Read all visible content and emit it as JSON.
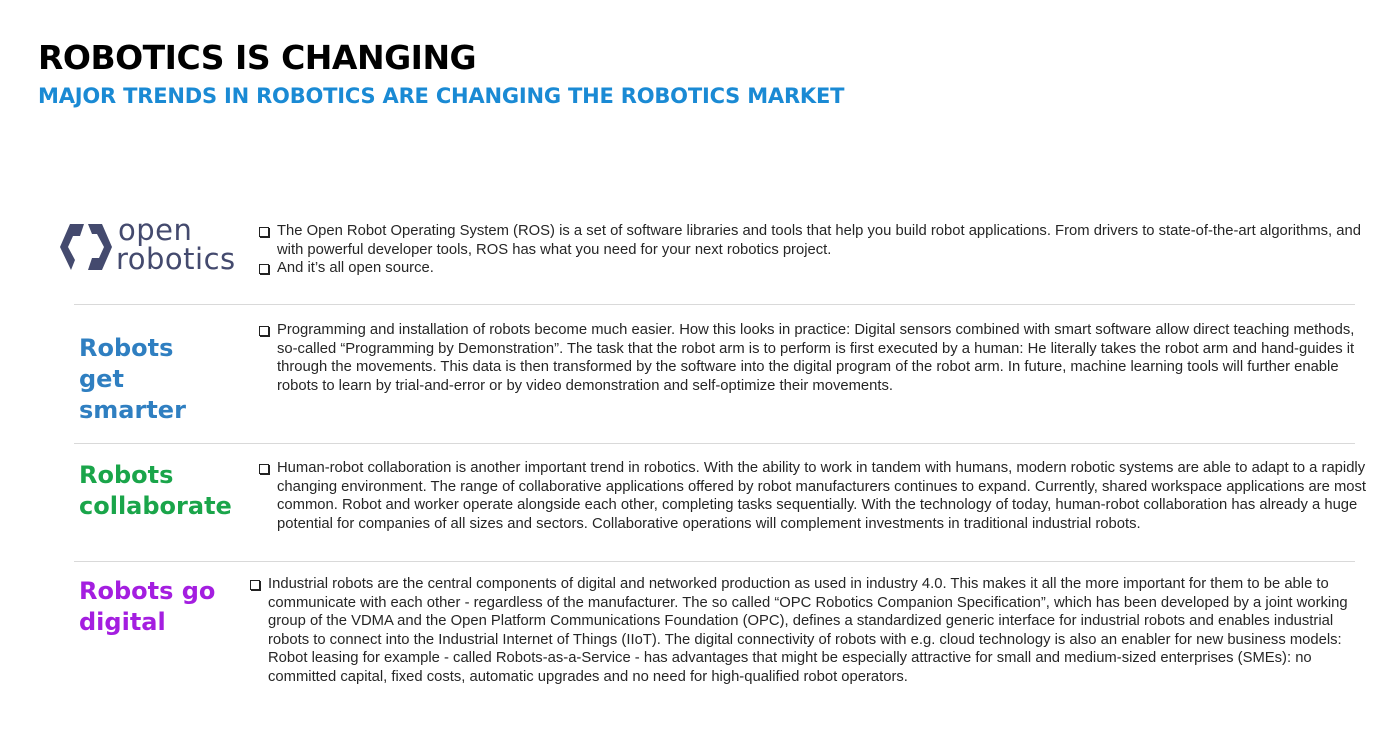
{
  "header": {
    "title": "ROBOTICS IS CHANGING",
    "subtitle": "MAJOR TRENDS IN ROBOTICS ARE CHANGING THE ROBOTICS MARKET"
  },
  "colors": {
    "subtitle": "#1a8ad4",
    "smarter": "#2f7fc1",
    "collaborate": "#1aa54a",
    "digital": "#a41ee0",
    "logo": "#444a6e"
  },
  "logo": {
    "line1": "open",
    "line2": "robotics",
    "icon": "open-robotics-logo-mark"
  },
  "sections": {
    "ros": {
      "items": [
        "The Open Robot Operating System (ROS) is a set of software libraries and tools that help you build robot applications. From drivers to state-of-the-art algorithms, and with powerful developer tools, ROS has what you need for your next robotics project.",
        "And it’s all open source."
      ]
    },
    "smarter": {
      "label_lines": [
        "Robots",
        "get",
        "smarter"
      ],
      "text": "Programming and installation of robots become much easier. How this looks in practice: Digital sensors combined with smart software allow direct teaching methods, so-called “Programming by Demonstration”. The task that the robot arm is to perform is first executed by a human: He literally takes the robot arm and hand-guides it through the movements. This data is then transformed by the software into the digital program of the robot arm. In future, machine learning tools will further enable robots to learn by trial-and-error or by video demonstration and self-optimize their movements."
    },
    "collaborate": {
      "label_lines": [
        "Robots",
        "collaborate"
      ],
      "text": "Human-robot collaboration is another important trend in robotics. With the ability to work in tandem with humans, modern robotic systems are able to adapt to a rapidly changing environment. The range of collaborative applications offered by robot manufacturers continues to expand. Currently, shared workspace applications are most common. Robot and worker operate alongside each other, completing tasks sequentially. With the technology of today, human-robot collaboration has already a huge potential for companies of all sizes and sectors. Collaborative operations will complement investments in traditional industrial robots."
    },
    "digital": {
      "label_lines": [
        "Robots go",
        "digital"
      ],
      "text": "Industrial robots are the central components of digital and networked production as used in industry 4.0. This makes it all the more important for them to be able to communicate with each other - regardless of the manufacturer. The so called “OPC Robotics Companion Specification”, which has been developed by a joint working group of the VDMA and the Open Platform Communications Foundation (OPC), defines a standardized generic interface for industrial robots and enables industrial robots to connect into the Industrial Internet of Things (IIoT). The digital connectivity of robots with e.g. cloud technology is also an enabler for new business models: Robot leasing for example - called Robots-as-a-Service - has advantages that might be especially attractive for small and medium-sized enterprises (SMEs): no committed capital, fixed costs, automatic upgrades and no need for high-qualified robot operators."
    }
  }
}
